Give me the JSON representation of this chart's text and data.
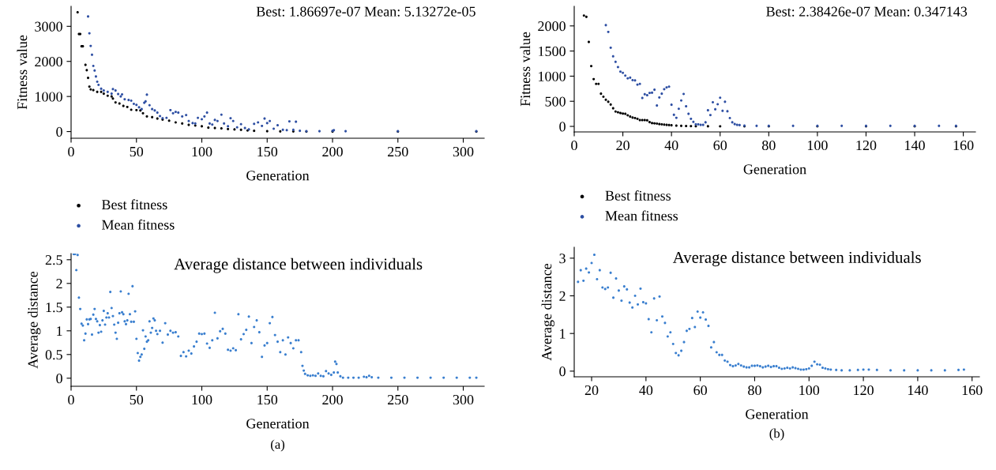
{
  "chart_data": [
    {
      "type": "scatter",
      "title": "Best: 1.86697e-07 Mean: 5.13272e-05",
      "xlabel": "Generation",
      "ylabel": "Fitness value",
      "xlim": [
        0,
        316
      ],
      "ylim": [
        -190,
        3570
      ],
      "xticks": [
        0,
        50,
        100,
        150,
        200,
        250,
        300
      ],
      "yticks": [
        0,
        1000,
        2000,
        3000
      ],
      "grid": false,
      "legend": "bottom",
      "marker": "circle",
      "series": [
        {
          "name": "Best fitness",
          "color": "#000000",
          "x": [
            5,
            6,
            7,
            8,
            9,
            11,
            12,
            13,
            14,
            15,
            17,
            20,
            23,
            25,
            28,
            31,
            32,
            34,
            37,
            40,
            43,
            46,
            50,
            53,
            55,
            58,
            62,
            66,
            70,
            75,
            80,
            85,
            90,
            95,
            100,
            105,
            110,
            115,
            120,
            125,
            130,
            135,
            140,
            150,
            160,
            170,
            180,
            200,
            250,
            310
          ],
          "values": [
            3400,
            2780,
            2780,
            2430,
            2430,
            1900,
            1750,
            1530,
            1280,
            1200,
            1180,
            1130,
            1130,
            1080,
            1020,
            1000,
            940,
            830,
            800,
            730,
            700,
            620,
            610,
            600,
            520,
            430,
            410,
            370,
            340,
            310,
            260,
            230,
            190,
            170,
            150,
            110,
            100,
            90,
            70,
            60,
            50,
            30,
            20,
            10,
            5,
            2,
            0,
            0,
            0,
            0
          ]
        },
        {
          "name": "Mean fitness",
          "color": "#2e4fa3",
          "x": [
            13,
            14,
            15,
            16,
            17,
            18,
            19,
            20,
            21,
            23,
            25,
            28,
            31,
            32,
            34,
            36,
            38,
            39,
            41,
            44,
            46,
            48,
            50,
            52,
            54,
            56,
            57,
            58,
            60,
            62,
            64,
            66,
            68,
            70,
            73,
            76,
            78,
            80,
            82,
            85,
            88,
            90,
            93,
            95,
            97,
            100,
            102,
            104,
            106,
            108,
            110,
            112,
            115,
            117,
            120,
            122,
            124,
            127,
            130,
            133,
            136,
            140,
            143,
            146,
            148,
            150,
            152,
            155,
            158,
            162,
            165,
            167,
            170,
            172,
            175,
            180,
            190,
            200,
            201,
            210,
            250,
            310
          ],
          "values": [
            3280,
            2800,
            2440,
            2190,
            1870,
            1740,
            1570,
            1420,
            1330,
            1220,
            1170,
            1130,
            1080,
            1210,
            1170,
            1070,
            1000,
            1060,
            920,
            900,
            880,
            790,
            760,
            690,
            640,
            820,
            860,
            1050,
            750,
            640,
            600,
            540,
            440,
            380,
            390,
            610,
            520,
            560,
            540,
            430,
            470,
            300,
            240,
            230,
            390,
            350,
            430,
            540,
            230,
            200,
            330,
            300,
            480,
            230,
            150,
            380,
            300,
            120,
            210,
            100,
            60,
            220,
            260,
            160,
            370,
            240,
            300,
            80,
            180,
            50,
            40,
            290,
            50,
            280,
            20,
            10,
            10,
            20,
            40,
            10,
            10,
            10
          ]
        }
      ]
    },
    {
      "type": "scatter",
      "title": "Best: 2.38426e-07 Mean: 0.347143",
      "xlabel": "Generation",
      "ylabel": "Fitness value",
      "xlim": [
        0,
        165
      ],
      "ylim": [
        -110,
        2390
      ],
      "xticks": [
        0,
        20,
        40,
        60,
        80,
        100,
        120,
        140,
        160
      ],
      "yticks": [
        0,
        500,
        1000,
        1500,
        2000
      ],
      "grid": false,
      "legend": "bottom",
      "marker": "circle",
      "series": [
        {
          "name": "Best fitness",
          "color": "#000000",
          "x": [
            4,
            5,
            6,
            7,
            8,
            9,
            10,
            11,
            12,
            13,
            14,
            15,
            16,
            17,
            18,
            19,
            20,
            21,
            22,
            23,
            24,
            25,
            26,
            27,
            28,
            29,
            30,
            31,
            32,
            33,
            34,
            35,
            36,
            37,
            38,
            39,
            40,
            42,
            44,
            46,
            48,
            50,
            55,
            60,
            70,
            80,
            100,
            120,
            140,
            157
          ],
          "values": [
            2205,
            2180,
            1680,
            1200,
            940,
            845,
            845,
            650,
            590,
            530,
            490,
            435,
            360,
            295,
            280,
            265,
            255,
            250,
            220,
            195,
            175,
            165,
            150,
            125,
            125,
            125,
            120,
            85,
            65,
            60,
            55,
            45,
            40,
            35,
            30,
            25,
            22,
            15,
            10,
            7,
            5,
            3,
            2,
            1,
            0,
            0,
            0,
            0,
            0,
            0
          ]
        },
        {
          "name": "Mean fitness",
          "color": "#2e4fa3",
          "x": [
            13,
            14,
            15,
            16,
            17,
            18,
            19,
            20,
            21,
            22,
            23,
            24,
            25,
            26,
            27,
            28,
            29,
            30,
            31,
            32,
            33,
            34,
            35,
            36,
            37,
            38,
            39,
            40,
            41,
            42,
            43,
            44,
            45,
            46,
            47,
            48,
            49,
            50,
            51,
            52,
            53,
            54,
            55,
            56,
            57,
            58,
            59,
            60,
            61,
            62,
            63,
            64,
            65,
            66,
            67,
            68,
            70,
            75,
            80,
            90,
            100,
            110,
            120,
            130,
            140,
            150,
            157
          ],
          "values": [
            2015,
            1880,
            1565,
            1395,
            1285,
            1180,
            1090,
            1065,
            1010,
            955,
            970,
            920,
            915,
            830,
            845,
            565,
            640,
            620,
            665,
            670,
            730,
            415,
            575,
            650,
            740,
            775,
            790,
            430,
            230,
            170,
            350,
            515,
            645,
            400,
            250,
            150,
            90,
            40,
            40,
            30,
            30,
            80,
            320,
            225,
            480,
            340,
            440,
            570,
            310,
            490,
            300,
            165,
            80,
            45,
            30,
            25,
            15,
            10,
            10,
            10,
            10,
            10,
            10,
            10,
            10,
            10,
            10
          ]
        }
      ]
    },
    {
      "type": "scatter",
      "title": "Average distance between individuals",
      "xlabel": "Generation",
      "ylabel": "Average distance",
      "xlim": [
        0,
        316
      ],
      "ylim": [
        -0.17,
        2.63
      ],
      "xticks": [
        0,
        50,
        100,
        150,
        200,
        250,
        300
      ],
      "yticks": [
        0,
        0.5,
        1,
        1.5,
        2,
        2.5
      ],
      "grid": false,
      "marker": "circle",
      "annotations": [
        "(a)"
      ],
      "series": [
        {
          "color": "#3a7fcf",
          "x": [
            2,
            3,
            4,
            5,
            6,
            7,
            8,
            9,
            10,
            11,
            12,
            13,
            14,
            15,
            16,
            17,
            18,
            19,
            20,
            21,
            22,
            23,
            24,
            25,
            26,
            27,
            28,
            29,
            30,
            31,
            32,
            33,
            34,
            35,
            36,
            37,
            38,
            39,
            40,
            41,
            42,
            43,
            44,
            45,
            46,
            47,
            48,
            49,
            50,
            51,
            52,
            53,
            54,
            55,
            56,
            57,
            58,
            59,
            60,
            61,
            62,
            63,
            64,
            65,
            66,
            68,
            70,
            72,
            74,
            76,
            78,
            80,
            82,
            84,
            86,
            88,
            90,
            92,
            94,
            96,
            98,
            100,
            102,
            104,
            106,
            108,
            110,
            112,
            114,
            116,
            118,
            120,
            122,
            124,
            126,
            128,
            130,
            132,
            134,
            136,
            138,
            140,
            142,
            144,
            146,
            148,
            150,
            152,
            154,
            156,
            158,
            160,
            162,
            164,
            166,
            168,
            170,
            172,
            174,
            176,
            177,
            178,
            179,
            181,
            183,
            185,
            187,
            189,
            191,
            193,
            195,
            197,
            199,
            201,
            202,
            203,
            204,
            206,
            208,
            212,
            216,
            220,
            224,
            226,
            228,
            230,
            235,
            245,
            255,
            265,
            275,
            285,
            295,
            305,
            310
          ],
          "values": [
            2.62,
            2.62,
            2.28,
            2.6,
            1.7,
            1.46,
            1.15,
            1.11,
            0.8,
            0.94,
            1.24,
            1.14,
            1.24,
            1.25,
            0.92,
            1.34,
            1.46,
            1.25,
            1.2,
            0.96,
            1.12,
            0.98,
            1.22,
            1.42,
            1.13,
            1.28,
            1.37,
            1.28,
            1.82,
            1.48,
            1.31,
            1.13,
            0.96,
            0.83,
            1.17,
            1.37,
            1.83,
            1.39,
            1.35,
            1.2,
            1.14,
            1.22,
            1.78,
            1.35,
            1.19,
            1.94,
            1.19,
            1.41,
            0.83,
            0.53,
            0.37,
            0.45,
            0.5,
            1.01,
            0.62,
            0.88,
            0.77,
            0.8,
            1.2,
            0.96,
            1.06,
            1.26,
            1.22,
            1.0,
            0.93,
            1.0,
            0.75,
            1.16,
            0.92,
            1.0,
            0.96,
            0.97,
            0.88,
            0.47,
            0.55,
            0.46,
            0.58,
            0.52,
            0.67,
            0.77,
            0.94,
            0.93,
            0.94,
            0.73,
            0.64,
            0.8,
            1.38,
            0.84,
            0.99,
            1.04,
            0.94,
            0.6,
            0.58,
            0.63,
            0.59,
            1.35,
            0.82,
            0.93,
            1.02,
            1.3,
            0.74,
            1.08,
            1.22,
            0.97,
            0.45,
            0.69,
            0.74,
            1.16,
            1.29,
            0.91,
            0.77,
            0.55,
            0.8,
            0.5,
            0.86,
            0.74,
            0.63,
            0.8,
            0.8,
            0.55,
            0.26,
            0.16,
            0.09,
            0.06,
            0.05,
            0.06,
            0.05,
            0.1,
            0.05,
            0.04,
            0.15,
            0.1,
            0.07,
            0.12,
            0.35,
            0.3,
            0.12,
            0.04,
            0.01,
            0.01,
            0.01,
            0.01,
            0.03,
            0.02,
            0.05,
            0.02,
            0.01,
            0.01,
            0.01,
            0.01,
            0.01,
            0.01,
            0.01,
            0.01,
            0.01
          ]
        }
      ]
    },
    {
      "type": "scatter",
      "title": "Average distance between individuals",
      "xlabel": "Generation",
      "ylabel": "Average distance",
      "xlim": [
        13.6,
        162.7
      ],
      "ylim": [
        -0.15,
        3.29
      ],
      "xticks": [
        20,
        40,
        60,
        80,
        100,
        120,
        140,
        160
      ],
      "yticks": [
        0,
        1,
        2,
        3
      ],
      "grid": false,
      "marker": "circle",
      "annotations": [
        "(b)"
      ],
      "series": [
        {
          "color": "#3a7fcf",
          "x": [
            15,
            16,
            17,
            18,
            19,
            20,
            21,
            22,
            23,
            24,
            25,
            26,
            27,
            28,
            29,
            30,
            31,
            32,
            33,
            34,
            35,
            36,
            37,
            38,
            39,
            40,
            41,
            42,
            43,
            44,
            45,
            46,
            47,
            48,
            49,
            50,
            51,
            52,
            53,
            54,
            55,
            56,
            57,
            58,
            59,
            60,
            61,
            62,
            63,
            64,
            65,
            66,
            67,
            68,
            69,
            70,
            71,
            72,
            73,
            74,
            75,
            76,
            77,
            78,
            79,
            80,
            81,
            82,
            83,
            84,
            85,
            86,
            87,
            88,
            89,
            90,
            91,
            92,
            93,
            94,
            95,
            96,
            97,
            98,
            99,
            100,
            101,
            102,
            103,
            104,
            105,
            106,
            107,
            108,
            110,
            112,
            115,
            118,
            120,
            122,
            125,
            130,
            135,
            140,
            145,
            150,
            155,
            157
          ],
          "values": [
            2.37,
            2.68,
            2.4,
            2.72,
            2.62,
            2.87,
            3.09,
            2.44,
            2.68,
            2.22,
            2.18,
            2.22,
            2.61,
            1.95,
            2.46,
            2.14,
            1.87,
            2.25,
            2.17,
            1.82,
            1.69,
            2.0,
            1.77,
            2.19,
            1.83,
            1.8,
            1.38,
            1.03,
            1.93,
            1.35,
            1.98,
            1.45,
            1.28,
            0.92,
            1.03,
            0.72,
            0.48,
            0.42,
            0.54,
            0.77,
            1.07,
            1.12,
            1.41,
            1.17,
            1.58,
            1.42,
            1.56,
            1.37,
            1.2,
            0.63,
            0.77,
            0.5,
            0.43,
            0.43,
            0.28,
            0.25,
            0.16,
            0.13,
            0.15,
            0.19,
            0.15,
            0.12,
            0.1,
            0.1,
            0.14,
            0.14,
            0.15,
            0.13,
            0.1,
            0.12,
            0.14,
            0.11,
            0.13,
            0.13,
            0.09,
            0.06,
            0.07,
            0.09,
            0.07,
            0.1,
            0.08,
            0.06,
            0.04,
            0.04,
            0.05,
            0.07,
            0.14,
            0.25,
            0.18,
            0.17,
            0.09,
            0.07,
            0.05,
            0.04,
            0.03,
            0.02,
            0.02,
            0.03,
            0.04,
            0.04,
            0.03,
            0.02,
            0.02,
            0.02,
            0.02,
            0.02,
            0.03,
            0.04
          ]
        }
      ]
    }
  ]
}
